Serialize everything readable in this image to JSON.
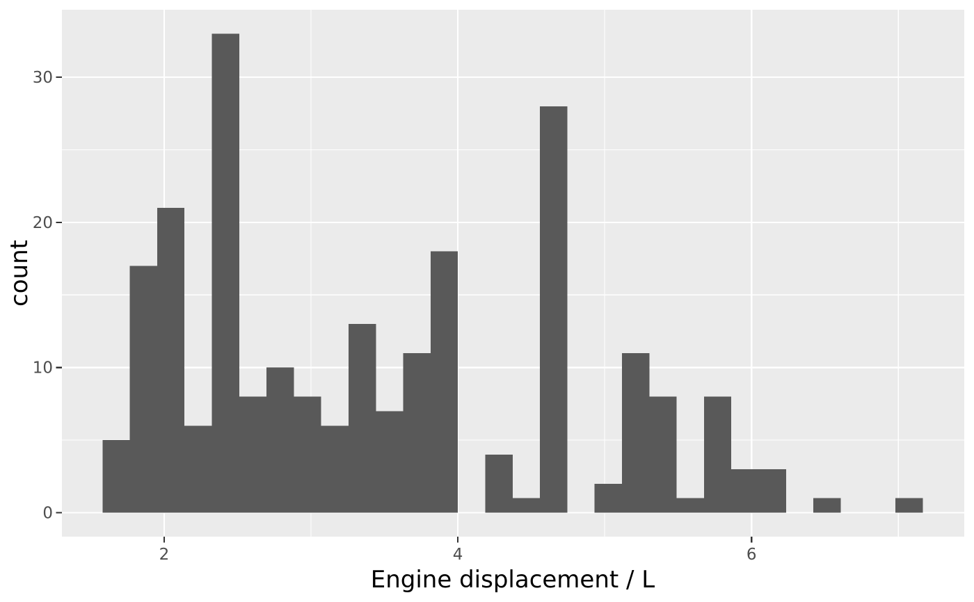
{
  "chart_data": {
    "type": "bar",
    "subtype": "histogram",
    "title": "",
    "xlabel": "Engine displacement / L",
    "ylabel": "count",
    "bin_start": 1.58,
    "bin_width": 0.1862,
    "counts": [
      5,
      17,
      21,
      6,
      33,
      8,
      10,
      8,
      6,
      13,
      7,
      11,
      18,
      0,
      4,
      1,
      28,
      0,
      2,
      11,
      8,
      1,
      8,
      3,
      3,
      0,
      1,
      0,
      0,
      1
    ],
    "total_observations": 234,
    "x_ticks": [
      2,
      4,
      6
    ],
    "x_tick_labels": [
      "2",
      "4",
      "6"
    ],
    "y_ticks": [
      0,
      10,
      20,
      30
    ],
    "y_tick_labels": [
      "0",
      "10",
      "20",
      "30"
    ],
    "x_minor_gridlines": [
      3,
      5,
      7
    ],
    "y_minor_gridlines": [
      5,
      15,
      25
    ],
    "x_domain": [
      1.3035,
      7.449
    ],
    "y_domain": [
      -1.65,
      34.65
    ],
    "grid": "on",
    "legend_position": "none"
  },
  "colors": {
    "figure_bg": "#FFFFFF",
    "panel_bg": "#EBEBEB",
    "grid_major": "#FFFFFF",
    "grid_minor": "#FFFFFF",
    "bar_fill": "#595959",
    "tick_mark": "#333333",
    "tick_label": "#4D4D4D",
    "axis_title": "#000000"
  }
}
